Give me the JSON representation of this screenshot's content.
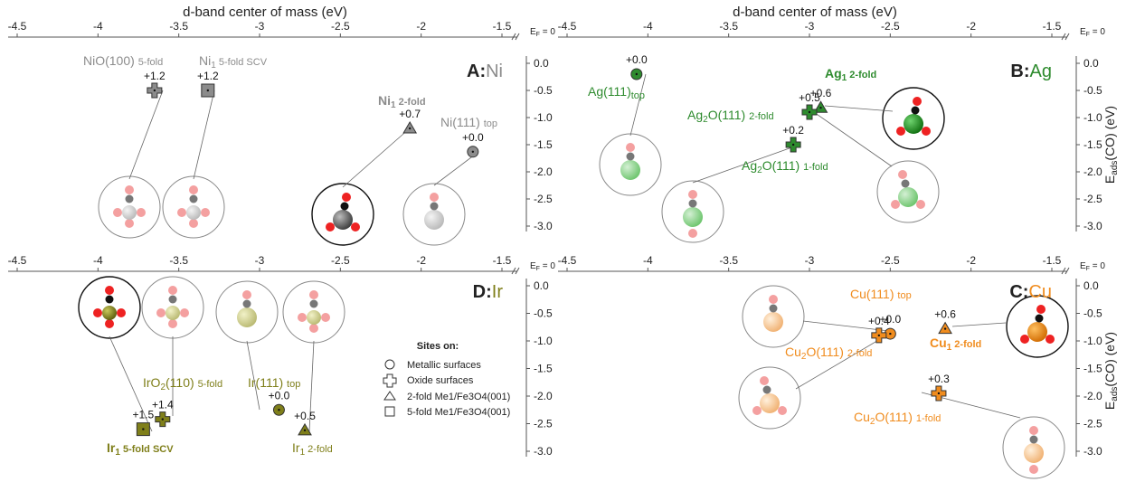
{
  "figure": {
    "top_axis_title": "d-band center of mass (eV)",
    "y_axis_title_main": "E",
    "y_axis_title_sub": "ads",
    "y_axis_title_rest": "(CO) (eV)",
    "ef_label": "E",
    "ef_sub": "F",
    "ef_rest": " = 0",
    "x_ticks": [
      -4.5,
      -4,
      -3.5,
      -3,
      -2.5,
      -2,
      -1.5
    ],
    "y_ticks": [
      0.0,
      -0.5,
      -1.0,
      -1.5,
      -2.0,
      -2.5,
      -3.0
    ],
    "colors": {
      "Ni": "#8c8c8c",
      "Ag": "#2e8b2e",
      "Ir": "#7f7f1a",
      "Cu": "#f08c1e",
      "atom_O": "#ee2222",
      "atom_O_faint": "#f4a0a0",
      "atom_C": "#777777",
      "atom_C_black": "#111111"
    }
  },
  "legend": {
    "title": "Sites on:",
    "items": [
      {
        "marker": "circle",
        "label": "Metallic surfaces"
      },
      {
        "marker": "plus",
        "label": "Oxide surfaces"
      },
      {
        "marker": "triangle",
        "label": "2-fold Me1/Fe3O4(001)"
      },
      {
        "marker": "square",
        "label": "5-fold Me1/Fe3O4(001)"
      }
    ]
  },
  "chart_data": [
    {
      "type": "scatter",
      "panel": "A",
      "title_letter": "A:",
      "title_metal": "Ni",
      "xlim": [
        -4.6,
        -1.4
      ],
      "ylim": [
        0.2,
        -3.2
      ],
      "points": [
        {
          "name": "NiO(100) 5-fold",
          "marker": "plus",
          "x": -3.65,
          "y": -0.5,
          "delta": "+1.2"
        },
        {
          "name": "Ni1 5-fold SCV",
          "marker": "square",
          "x": -3.32,
          "y": -0.5,
          "delta": "+1.2"
        },
        {
          "name": "Ni1 2-fold",
          "marker": "triangle",
          "x": -2.07,
          "y": -1.2,
          "delta": "+0.7"
        },
        {
          "name": "Ni(111) top",
          "marker": "circle",
          "x": -1.68,
          "y": -1.63,
          "delta": "+0.0"
        }
      ]
    },
    {
      "type": "scatter",
      "panel": "B",
      "title_letter": "B:",
      "title_metal": "Ag",
      "xlim": [
        -4.6,
        -1.4
      ],
      "ylim": [
        0.2,
        -3.2
      ],
      "points": [
        {
          "name": "Ag(111) top",
          "marker": "circle",
          "x": -4.07,
          "y": -0.2,
          "delta": "+0.0"
        },
        {
          "name": "Ag1 2-fold",
          "marker": "triangle",
          "x": -2.93,
          "y": -0.82,
          "delta": "+0.6"
        },
        {
          "name": "Ag2O(111) 2-fold",
          "marker": "plus",
          "x": -3.0,
          "y": -0.9,
          "delta": "+0.5"
        },
        {
          "name": "Ag2O(111) 1-fold",
          "marker": "plus",
          "x": -3.1,
          "y": -1.5,
          "delta": "+0.2"
        }
      ]
    },
    {
      "type": "scatter",
      "panel": "D",
      "title_letter": "D:",
      "title_metal": "Ir",
      "xlim": [
        -4.6,
        -1.4
      ],
      "ylim": [
        0.2,
        -3.2
      ],
      "points": [
        {
          "name": "Ir1 5-fold SCV",
          "marker": "square",
          "x": -3.72,
          "y": -2.6,
          "delta": "+1.5"
        },
        {
          "name": "IrO2(110) 5-fold",
          "marker": "plus",
          "x": -3.6,
          "y": -2.42,
          "delta": "+1.4"
        },
        {
          "name": "Ir(111) top",
          "marker": "circle",
          "x": -2.88,
          "y": -2.25,
          "delta": "+0.0"
        },
        {
          "name": "Ir1 2-fold",
          "marker": "triangle",
          "x": -2.72,
          "y": -2.62,
          "delta": "+0.5"
        }
      ]
    },
    {
      "type": "scatter",
      "panel": "C",
      "title_letter": "C:",
      "title_metal": "Cu",
      "xlim": [
        -4.6,
        -1.4
      ],
      "ylim": [
        0.2,
        -3.2
      ],
      "points": [
        {
          "name": "Cu(111) top",
          "marker": "circle",
          "x": -2.5,
          "y": -0.87,
          "delta": "+0.0"
        },
        {
          "name": "Cu2O(111) 2-fold",
          "marker": "plus",
          "x": -2.57,
          "y": -0.9,
          "delta": "+0.4"
        },
        {
          "name": "Cu1 2-fold",
          "marker": "triangle",
          "x": -2.16,
          "y": -0.78,
          "delta": "+0.6"
        },
        {
          "name": "Cu2O(111) 1-fold",
          "marker": "plus",
          "x": -2.2,
          "y": -1.95,
          "delta": "+0.3"
        }
      ]
    }
  ]
}
